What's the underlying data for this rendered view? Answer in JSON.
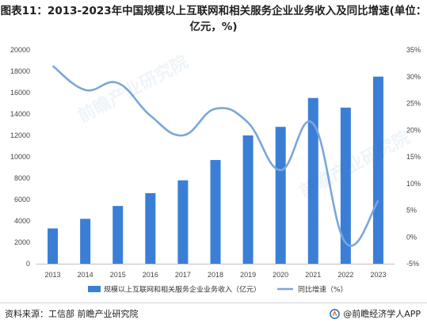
{
  "title": "图表11：2013-2023年中国规模以上互联网和相关服务企业业务收入及同比增速(单位：亿元，%)",
  "source": "资料来源：工信部 前瞻产业研究院",
  "brand": "@前瞻经济学人APP",
  "watermark": "前瞻产业研究院",
  "chart_data": {
    "type": "bar",
    "categories": [
      "2013",
      "2014",
      "2015",
      "2016",
      "2017",
      "2018",
      "2019",
      "2020",
      "2021",
      "2022",
      "2023"
    ],
    "series": [
      {
        "name": "规模以上互联网和相关服务企业业务收入（亿元）",
        "type": "bar",
        "axis": "left",
        "values": [
          3300,
          4200,
          5400,
          6600,
          7800,
          9700,
          12000,
          12800,
          15500,
          14600,
          17500
        ]
      },
      {
        "name": "同比增速（%）",
        "type": "line",
        "axis": "right",
        "values": [
          32,
          27.5,
          28.8,
          22.7,
          19,
          24,
          21.4,
          12.5,
          21.2,
          -1.1,
          6.8
        ]
      }
    ],
    "y_left": {
      "min": 0,
      "max": 20000,
      "step": 2000
    },
    "y_right": {
      "min": -5,
      "max": 35,
      "step": 5,
      "suffix": "%"
    },
    "legend": "bottom",
    "grid": false,
    "colors": {
      "bar": "#3a7fd5",
      "line": "#7aa7d9"
    }
  }
}
